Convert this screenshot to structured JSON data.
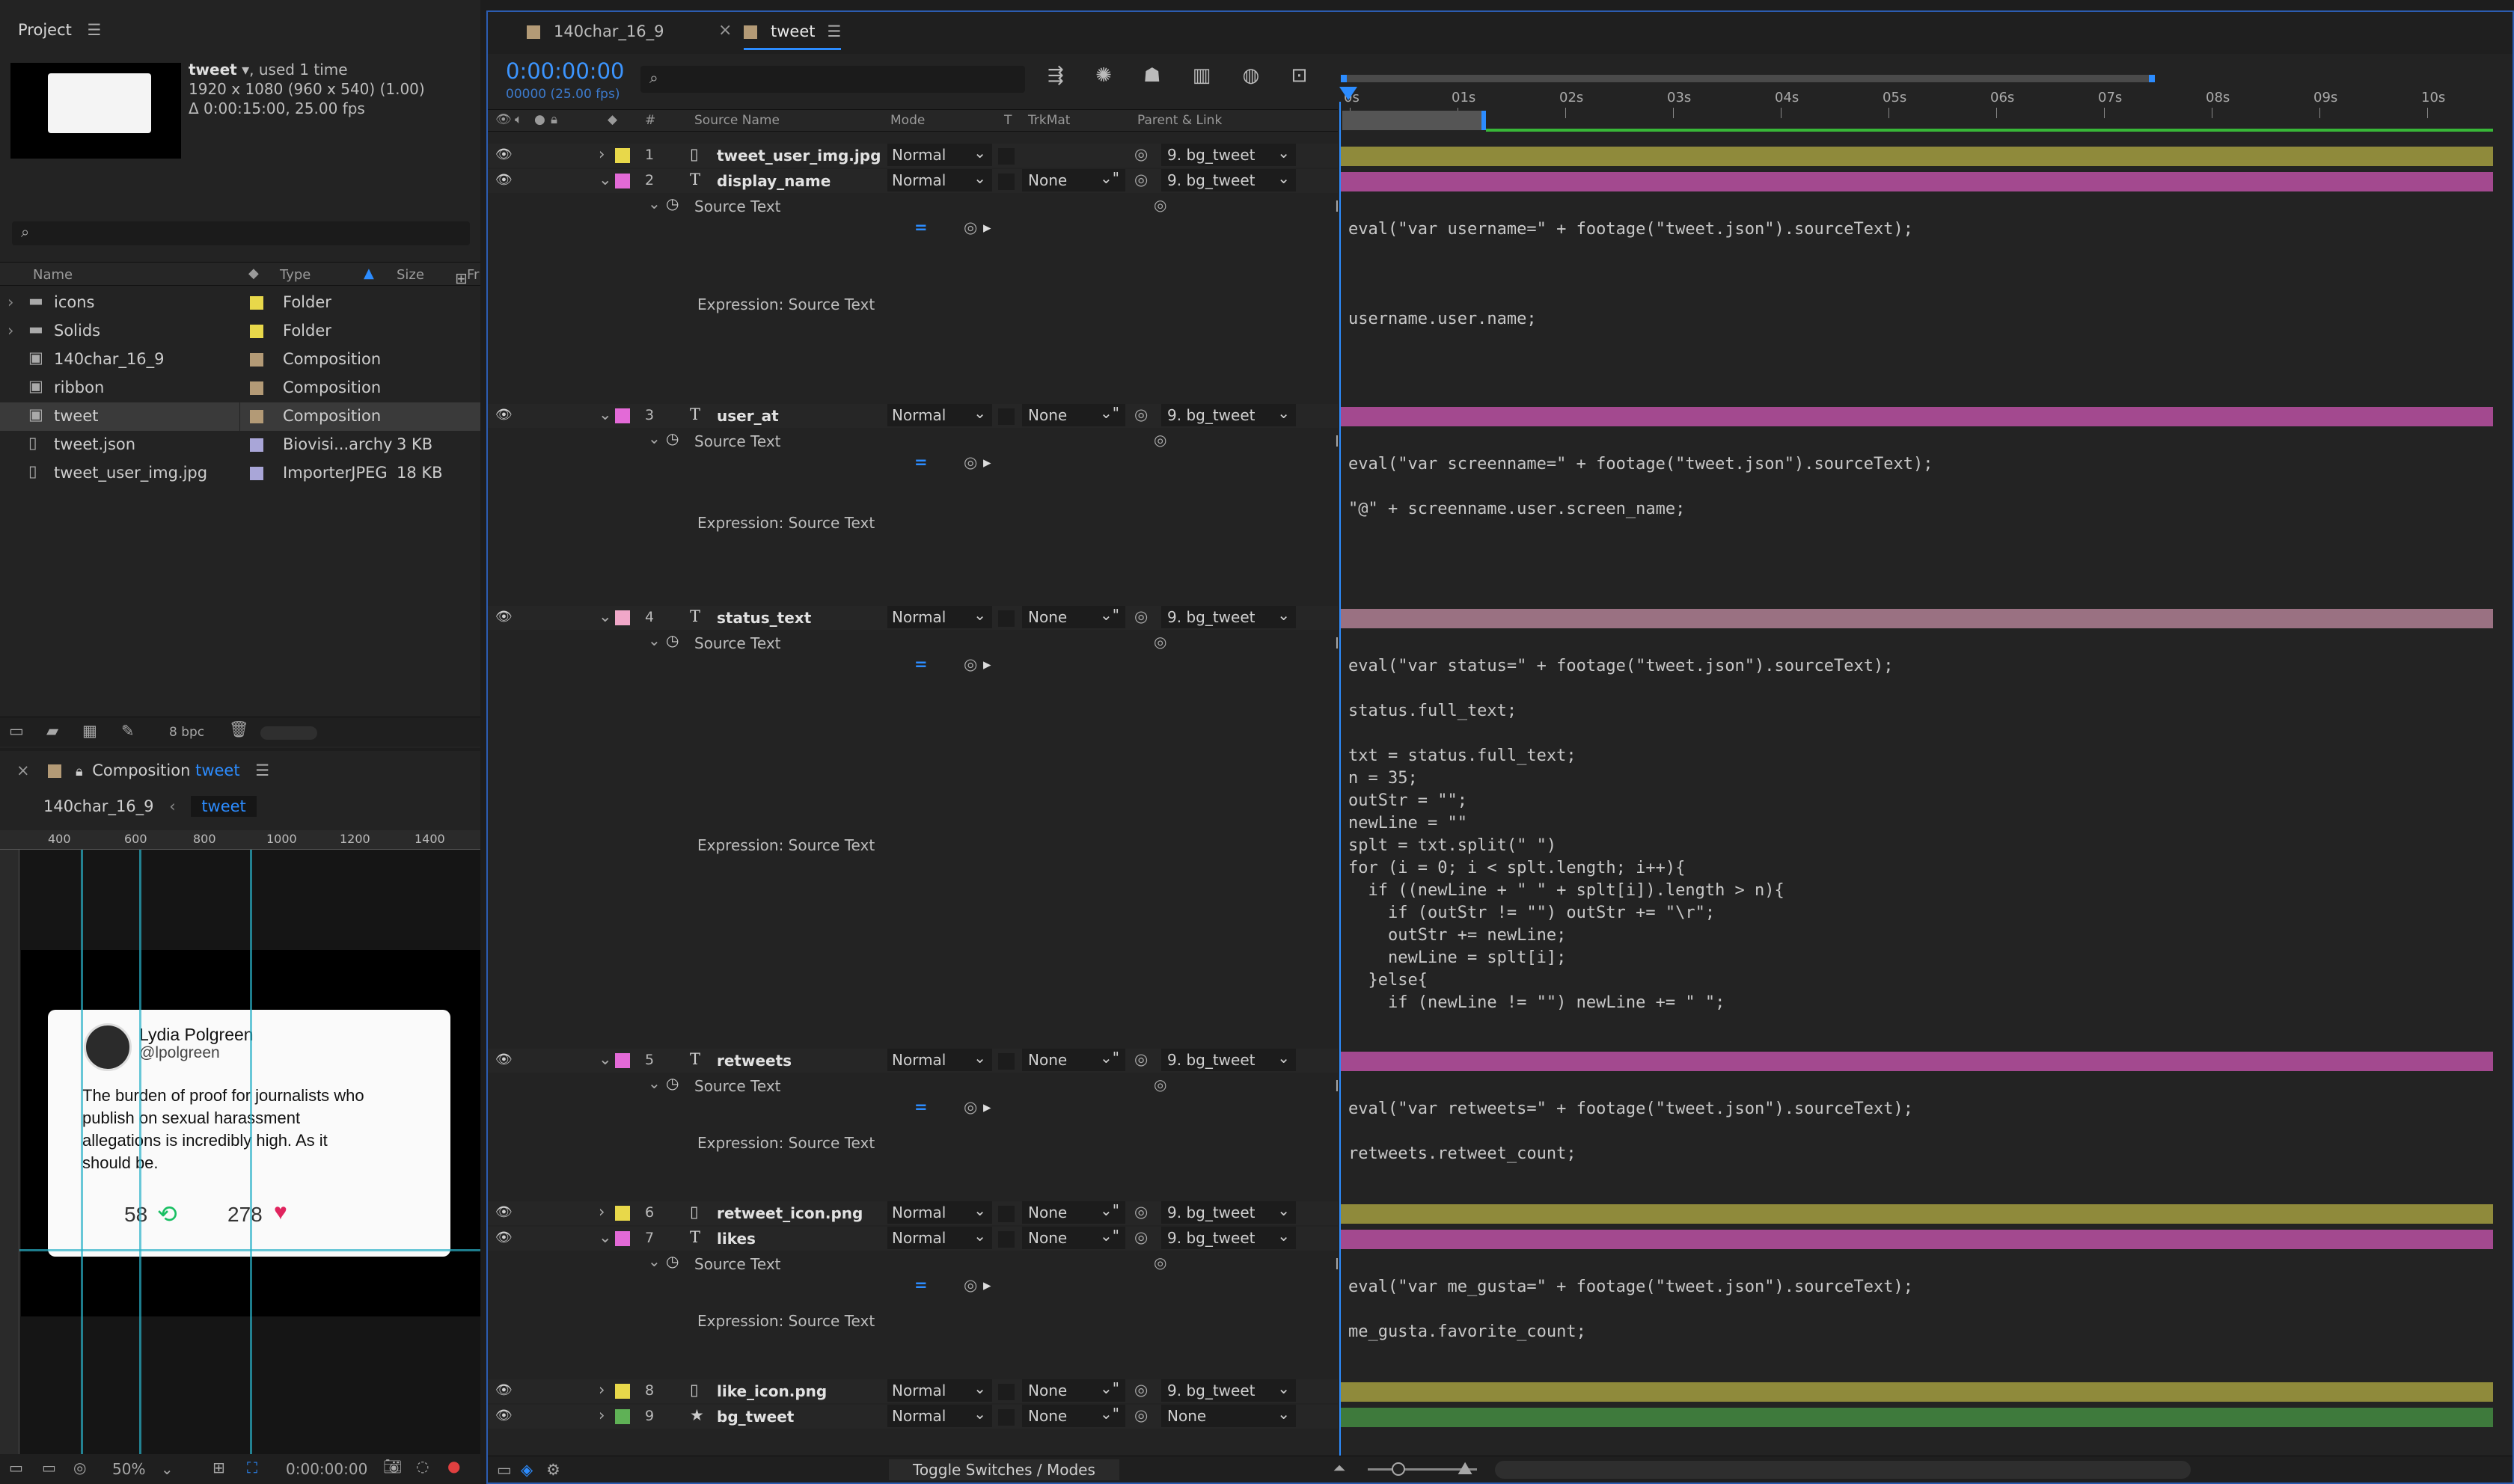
{
  "project": {
    "tab_label": "Project",
    "item_name": "tweet",
    "item_used": ", used 1 time",
    "item_dims": "1920 x 1080  (960 x 540) (1.00)",
    "item_duration": "Δ 0:00:15:00, 25.00 fps",
    "columns": {
      "name": "Name",
      "type": "Type",
      "size": "Size",
      "fr": "Fr"
    },
    "items": [
      {
        "name": "icons",
        "type": "Folder",
        "size": "",
        "color": "#e8d84a",
        "kind": "folder"
      },
      {
        "name": "Solids",
        "type": "Folder",
        "size": "",
        "color": "#e8d84a",
        "kind": "folder"
      },
      {
        "name": "140char_16_9",
        "type": "Composition",
        "size": "",
        "color": "#b39a76",
        "kind": "comp"
      },
      {
        "name": "ribbon",
        "type": "Composition",
        "size": "",
        "color": "#b39a76",
        "kind": "comp"
      },
      {
        "name": "tweet",
        "type": "Composition",
        "size": "",
        "color": "#b39a76",
        "kind": "comp"
      },
      {
        "name": "tweet.json",
        "type": "Biovisi...archy",
        "size": "3 KB",
        "color": "#a9a6d8",
        "kind": "file"
      },
      {
        "name": "tweet_user_img.jpg",
        "type": "ImporterJPEG",
        "size": "18 KB",
        "color": "#a9a6d8",
        "kind": "file"
      }
    ],
    "bpc": "8 bpc"
  },
  "comp_viewer": {
    "label": "Composition",
    "comp_name": "tweet",
    "crumb_parent": "140char_16_9",
    "crumb_child": "tweet",
    "ruler": [
      "400",
      "600",
      "800",
      "1000",
      "1200",
      "1400"
    ],
    "zoom": "50%",
    "timecode": "0:00:00:00",
    "tweet": {
      "display_name": "Lydia Polgreen",
      "handle": "@lpolgreen",
      "text": "The burden of proof for journalists who publish on sexual harassment allegations is incredibly high. As it should be.",
      "retweets": "58",
      "likes": "278"
    }
  },
  "timeline": {
    "tabs": [
      {
        "label": "140char_16_9",
        "active": false
      },
      {
        "label": "tweet",
        "active": true
      }
    ],
    "timecode": "0:00:00:00",
    "fps": "00000 (25.00 fps)",
    "col_headers": {
      "num": "#",
      "source": "Source Name",
      "mode": "Mode",
      "t": "T",
      "trkmat": "TrkMat",
      "parent": "Parent & Link"
    },
    "ruler": [
      "0s",
      "01s",
      "02s",
      "03s",
      "04s",
      "05s",
      "06s",
      "07s",
      "08s",
      "09s",
      "10s"
    ],
    "layers": [
      {
        "num": "1",
        "name": "tweet_user_img.jpg",
        "kind": "footage",
        "color": "#e8d84a",
        "mode": "Normal",
        "trkmat": "",
        "parent": "9. bg_tweet",
        "bar": "#8f8a3b",
        "expanded": false
      },
      {
        "num": "2",
        "name": "display_name",
        "kind": "text",
        "color": "#e36ad7",
        "mode": "Normal",
        "trkmat": "None",
        "parent": "9. bg_tweet",
        "bar": "#a3498f",
        "expanded": true,
        "code": "eval(\"var username=\" + footage(\"tweet.json\").sourceText);\n\n\n\nusername.user.name;"
      },
      {
        "num": "3",
        "name": "user_at",
        "kind": "text",
        "color": "#e36ad7",
        "mode": "Normal",
        "trkmat": "None",
        "parent": "9. bg_tweet",
        "bar": "#a3498f",
        "expanded": true,
        "code": "eval(\"var screenname=\" + footage(\"tweet.json\").sourceText);\n\n\"@\" + screenname.user.screen_name;"
      },
      {
        "num": "4",
        "name": "status_text",
        "kind": "text",
        "color": "#f0a7c8",
        "mode": "Normal",
        "trkmat": "None",
        "parent": "9. bg_tweet",
        "bar": "#9a7182",
        "expanded": true,
        "code": "eval(\"var status=\" + footage(\"tweet.json\").sourceText);\n\nstatus.full_text;\n\ntxt = status.full_text;\nn = 35;\noutStr = \"\";\nnewLine = \"\"\nsplt = txt.split(\" \")\nfor (i = 0; i < splt.length; i++){\n  if ((newLine + \" \" + splt[i]).length > n){\n    if (outStr != \"\") outStr += \"\\r\";\n    outStr += newLine;\n    newLine = splt[i];\n  }else{\n    if (newLine != \"\") newLine += \" \";"
      },
      {
        "num": "5",
        "name": "retweets",
        "kind": "text",
        "color": "#e36ad7",
        "mode": "Normal",
        "trkmat": "None",
        "parent": "9. bg_tweet",
        "bar": "#a3498f",
        "expanded": true,
        "code": "eval(\"var retweets=\" + footage(\"tweet.json\").sourceText);\n\nretweets.retweet_count;"
      },
      {
        "num": "6",
        "name": "retweet_icon.png",
        "kind": "footage",
        "color": "#e8d84a",
        "mode": "Normal",
        "trkmat": "None",
        "parent": "9. bg_tweet",
        "bar": "#8f8a3b",
        "expanded": false
      },
      {
        "num": "7",
        "name": "likes",
        "kind": "text",
        "color": "#e36ad7",
        "mode": "Normal",
        "trkmat": "None",
        "parent": "9. bg_tweet",
        "bar": "#a3498f",
        "expanded": true,
        "code": "eval(\"var me_gusta=\" + footage(\"tweet.json\").sourceText);\n\nme_gusta.favorite_count;"
      },
      {
        "num": "8",
        "name": "like_icon.png",
        "kind": "footage",
        "color": "#e8d84a",
        "mode": "Normal",
        "trkmat": "None",
        "parent": "9. bg_tweet",
        "bar": "#8f8a3b",
        "expanded": false
      },
      {
        "num": "9",
        "name": "bg_tweet",
        "kind": "shape",
        "color": "#5fb156",
        "mode": "Normal",
        "trkmat": "None",
        "parent": "None",
        "bar": "#3e7a3c",
        "expanded": false
      }
    ],
    "source_text_label": "Source Text",
    "expression_label": "Expression: Source Text",
    "toggle_label": "Toggle Switches / Modes"
  }
}
